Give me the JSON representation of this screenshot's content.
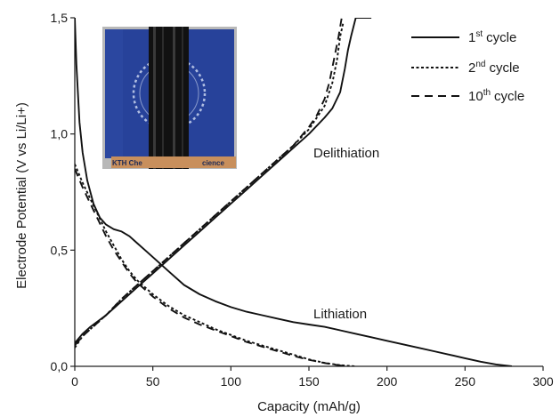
{
  "chart_data": {
    "type": "line",
    "xlabel": "Capacity (mAh/g)",
    "ylabel": "Electrode Potential (V vs Li/Li+)",
    "xlim": [
      0,
      300
    ],
    "ylim": [
      0,
      1.5
    ],
    "xticks": [
      0,
      50,
      100,
      150,
      200,
      250,
      300
    ],
    "xtick_labels": [
      "0",
      "50",
      "100",
      "150",
      "200",
      "250",
      "300"
    ],
    "yticks": [
      0,
      0.5,
      1.0,
      1.5
    ],
    "ytick_labels": [
      "0,0",
      "0,5",
      "1,0",
      "1,5"
    ],
    "grid": false,
    "legend_position": "top-right",
    "legend": [
      {
        "num": "1",
        "sup": "st",
        "text": "cycle",
        "dash": "solid"
      },
      {
        "num": "2",
        "sup": "nd",
        "text": "cycle",
        "dash": "dotted"
      },
      {
        "num": "10",
        "sup": "th",
        "text": "cycle",
        "dash": "dashed"
      }
    ],
    "annotations": [
      {
        "text": "Delithiation",
        "x": 200,
        "y": 0.98
      },
      {
        "text": "Lithiation",
        "x": 195,
        "y": 0.23
      }
    ],
    "inset": {
      "description": "photograph",
      "caption_fragment": "KTH Che",
      "caption_fragment_2": "cience"
    },
    "series": [
      {
        "name": "1st cycle",
        "segment": "lithiation",
        "dash": "solid",
        "x": [
          0,
          1,
          3,
          5,
          8,
          12,
          16,
          20,
          25,
          30,
          35,
          40,
          45,
          50,
          60,
          70,
          80,
          90,
          100,
          110,
          120,
          130,
          140,
          150,
          160,
          170,
          180,
          190,
          200,
          210,
          220,
          230,
          240,
          250,
          260,
          270,
          280
        ],
        "y": [
          1.5,
          1.3,
          1.05,
          0.92,
          0.8,
          0.7,
          0.64,
          0.61,
          0.59,
          0.58,
          0.56,
          0.53,
          0.5,
          0.47,
          0.41,
          0.35,
          0.31,
          0.28,
          0.255,
          0.235,
          0.22,
          0.205,
          0.19,
          0.18,
          0.17,
          0.155,
          0.14,
          0.125,
          0.11,
          0.095,
          0.08,
          0.065,
          0.05,
          0.035,
          0.02,
          0.008,
          0.0
        ]
      },
      {
        "name": "1st cycle",
        "segment": "delithiation",
        "dash": "solid",
        "x": [
          0,
          5,
          10,
          20,
          30,
          40,
          50,
          60,
          70,
          80,
          90,
          100,
          110,
          120,
          130,
          140,
          150,
          160,
          165,
          170,
          173,
          175,
          177,
          180,
          190
        ],
        "y": [
          0.1,
          0.14,
          0.17,
          0.22,
          0.28,
          0.34,
          0.4,
          0.46,
          0.52,
          0.58,
          0.64,
          0.7,
          0.76,
          0.82,
          0.88,
          0.94,
          1.0,
          1.07,
          1.11,
          1.18,
          1.28,
          1.36,
          1.42,
          1.5,
          1.5
        ]
      },
      {
        "name": "2nd cycle",
        "segment": "lithiation",
        "dash": "dotted",
        "x": [
          0,
          5,
          10,
          15,
          20,
          25,
          30,
          35,
          40,
          50,
          60,
          70,
          80,
          90,
          100,
          110,
          120,
          130,
          140,
          150,
          160,
          170,
          180
        ],
        "y": [
          0.87,
          0.79,
          0.72,
          0.65,
          0.58,
          0.52,
          0.46,
          0.41,
          0.37,
          0.31,
          0.26,
          0.22,
          0.19,
          0.16,
          0.135,
          0.11,
          0.09,
          0.07,
          0.05,
          0.03,
          0.015,
          0.005,
          0.0
        ]
      },
      {
        "name": "2nd cycle",
        "segment": "delithiation",
        "dash": "dotted",
        "x": [
          0,
          5,
          10,
          20,
          30,
          40,
          50,
          60,
          70,
          80,
          90,
          100,
          110,
          120,
          130,
          140,
          150,
          160,
          165,
          168,
          170,
          172
        ],
        "y": [
          0.08,
          0.13,
          0.16,
          0.22,
          0.29,
          0.35,
          0.41,
          0.47,
          0.53,
          0.59,
          0.65,
          0.71,
          0.77,
          0.83,
          0.89,
          0.95,
          1.02,
          1.12,
          1.22,
          1.32,
          1.42,
          1.48
        ]
      },
      {
        "name": "10th cycle",
        "segment": "lithiation",
        "dash": "dashed",
        "x": [
          0,
          5,
          10,
          15,
          20,
          25,
          30,
          35,
          40,
          50,
          60,
          70,
          80,
          90,
          100,
          110,
          120,
          130,
          140,
          150,
          160,
          170,
          175
        ],
        "y": [
          0.85,
          0.77,
          0.7,
          0.63,
          0.56,
          0.5,
          0.45,
          0.4,
          0.36,
          0.3,
          0.25,
          0.21,
          0.18,
          0.155,
          0.13,
          0.105,
          0.085,
          0.065,
          0.045,
          0.028,
          0.014,
          0.004,
          0.0
        ]
      },
      {
        "name": "10th cycle",
        "segment": "delithiation",
        "dash": "dashed",
        "x": [
          0,
          5,
          10,
          20,
          30,
          40,
          50,
          60,
          70,
          80,
          90,
          100,
          110,
          120,
          130,
          140,
          150,
          155,
          160,
          163,
          166,
          169,
          171
        ],
        "y": [
          0.09,
          0.13,
          0.16,
          0.22,
          0.29,
          0.35,
          0.41,
          0.47,
          0.53,
          0.59,
          0.65,
          0.71,
          0.77,
          0.83,
          0.89,
          0.95,
          1.03,
          1.08,
          1.15,
          1.22,
          1.32,
          1.42,
          1.5
        ]
      }
    ]
  }
}
